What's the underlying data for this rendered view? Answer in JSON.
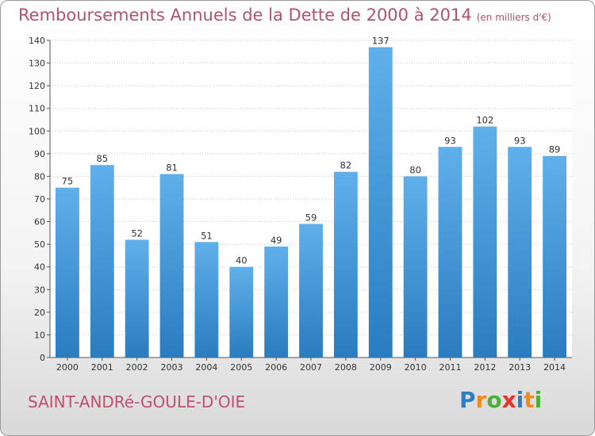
{
  "header": {
    "title": "Remboursements Annuels de la Dette de 2000 à 2014",
    "unit": "(en milliers d'€)"
  },
  "footer": {
    "location": "SAINT-ANDRé-GOULE-D'OIE",
    "logo_letters": [
      "P",
      "r",
      "o",
      "x",
      "i",
      "t",
      "i"
    ],
    "logo_colors": [
      "#2f7fc0",
      "#f08a1c",
      "#4caf3c",
      "#e0352b",
      "#2f7fc0",
      "#f08a1c",
      "#4caf3c"
    ]
  },
  "colors": {
    "bar_top": "#5fb0ea",
    "bar_bottom": "#2a7cc0",
    "title": "#b2536b",
    "grid": "#c8c8c8"
  },
  "chart_data": {
    "type": "bar",
    "title": "Remboursements Annuels de la Dette de 2000 à 2014",
    "xlabel": "",
    "ylabel": "",
    "categories": [
      "2000",
      "2001",
      "2002",
      "2003",
      "2004",
      "2005",
      "2006",
      "2007",
      "2008",
      "2009",
      "2010",
      "2011",
      "2012",
      "2013",
      "2014"
    ],
    "values": [
      75,
      85,
      52,
      81,
      51,
      40,
      49,
      59,
      82,
      137,
      80,
      93,
      102,
      93,
      89
    ],
    "ylim": [
      0,
      140
    ],
    "yticks": [
      0,
      10,
      20,
      30,
      40,
      50,
      60,
      70,
      80,
      90,
      100,
      110,
      120,
      130,
      140
    ],
    "grid": true,
    "legend": "none"
  }
}
